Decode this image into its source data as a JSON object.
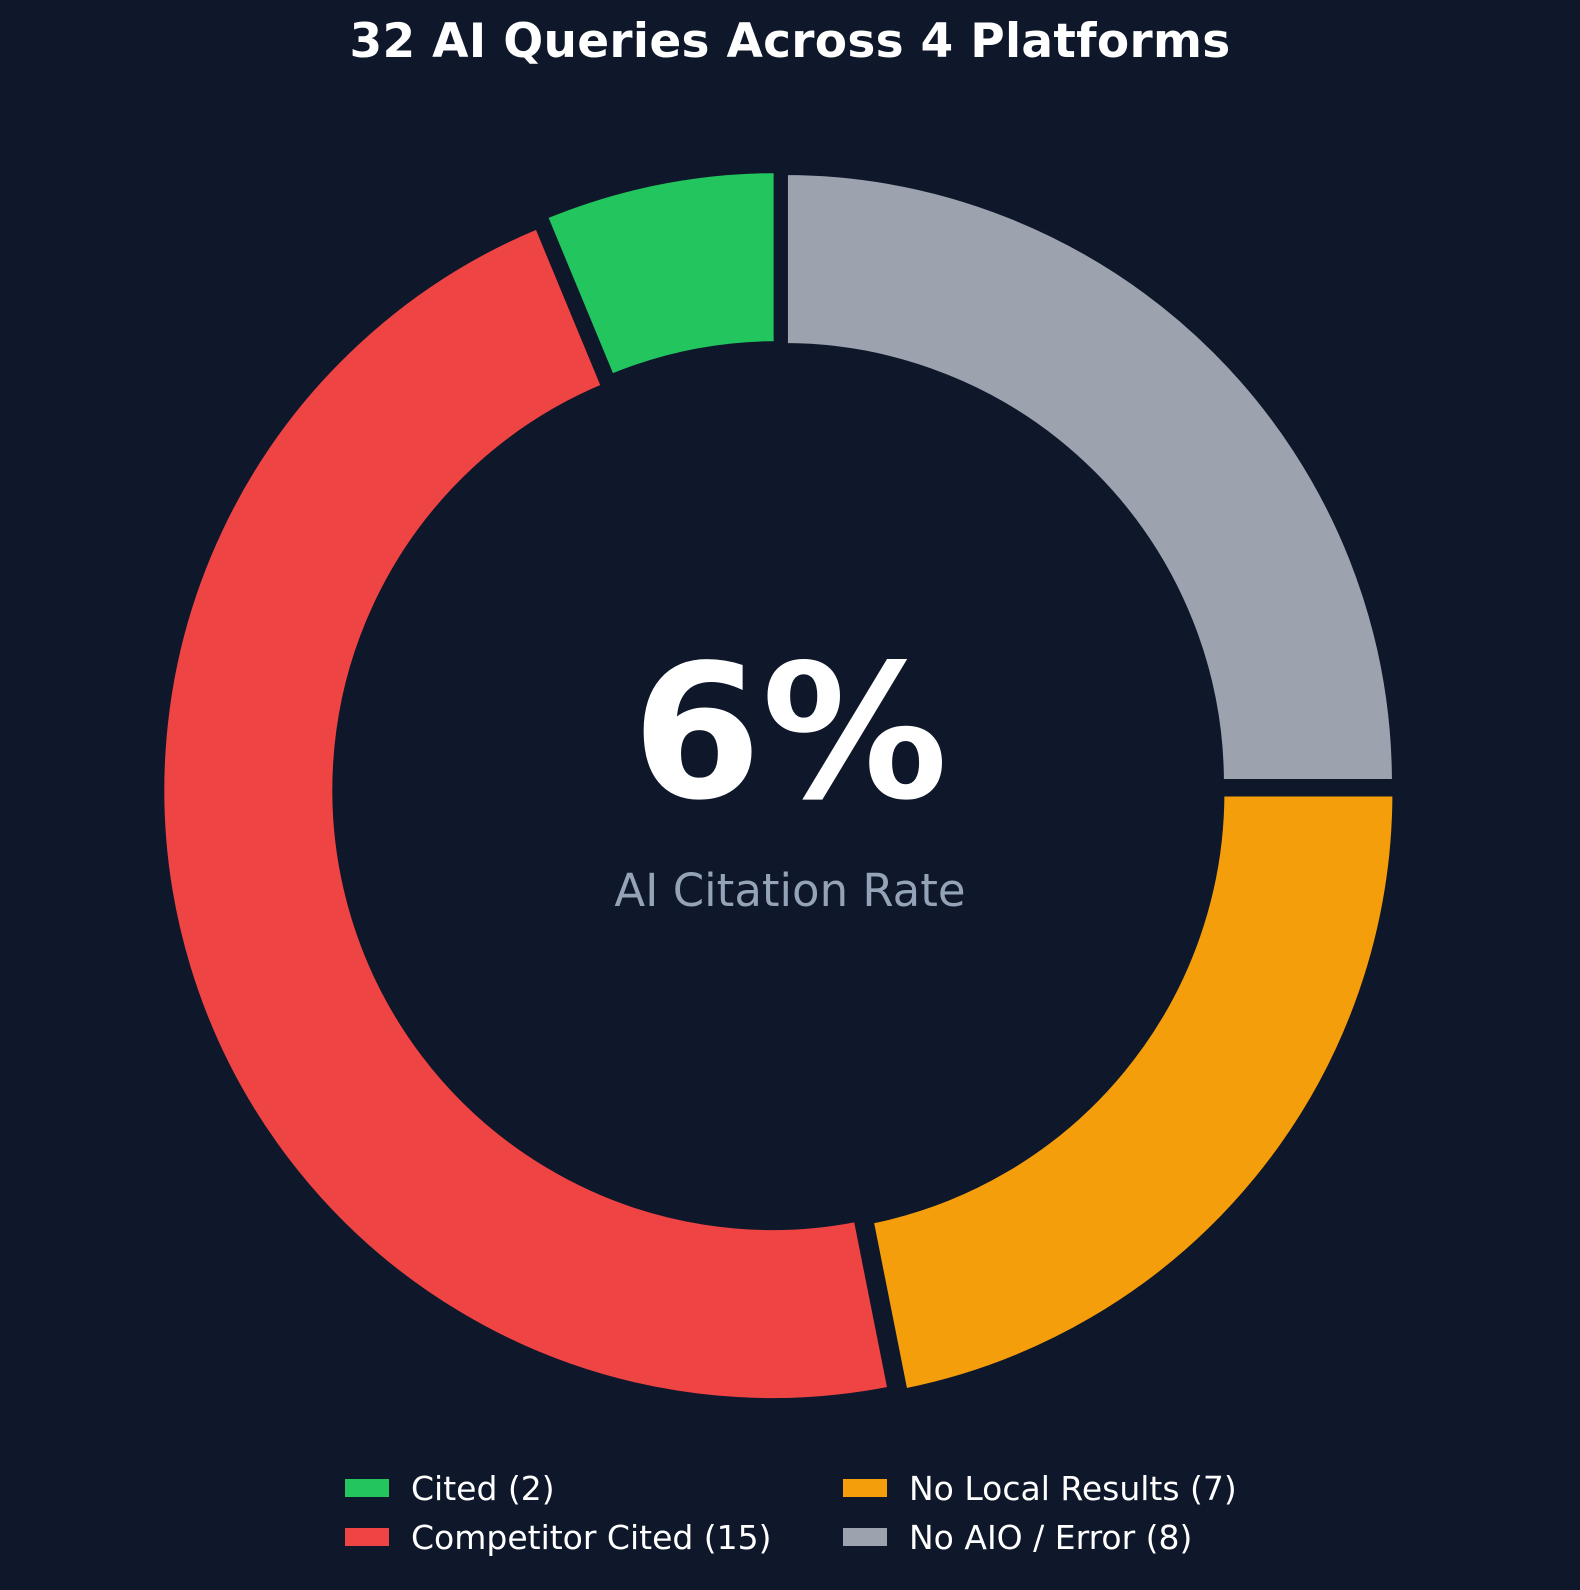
{
  "chart_data": {
    "type": "pie",
    "subtype": "donut",
    "title": "32 AI Queries Across 4 Platforms",
    "total": 32,
    "center_text": {
      "value": "6%",
      "label": "AI Citation Rate"
    },
    "categories": [
      "Cited",
      "Competitor Cited",
      "No Local Results",
      "No AIO / Error"
    ],
    "values": [
      2,
      15,
      7,
      8
    ],
    "colors": [
      "#22c55e",
      "#ef4444",
      "#f59e0b",
      "#9ca3af"
    ],
    "start_angle_deg": 90,
    "direction": "counterclockwise",
    "legend": {
      "position": "bottom",
      "columns": 2,
      "entries": [
        "Cited (2)",
        "Competitor Cited (15)",
        "No Local Results (7)",
        "No AIO / Error (8)"
      ]
    }
  },
  "title": "32 AI Queries Across 4 Platforms",
  "center": {
    "value": "6%",
    "label": "AI Citation Rate"
  },
  "legend": [
    {
      "label": "Cited (2)",
      "color": "#22c55e"
    },
    {
      "label": "Competitor Cited (15)",
      "color": "#ef4444"
    },
    {
      "label": "No Local Results (7)",
      "color": "#f59e0b"
    },
    {
      "label": "No AIO / Error (8)",
      "color": "#9ca3af"
    }
  ],
  "background": "#0f172a"
}
